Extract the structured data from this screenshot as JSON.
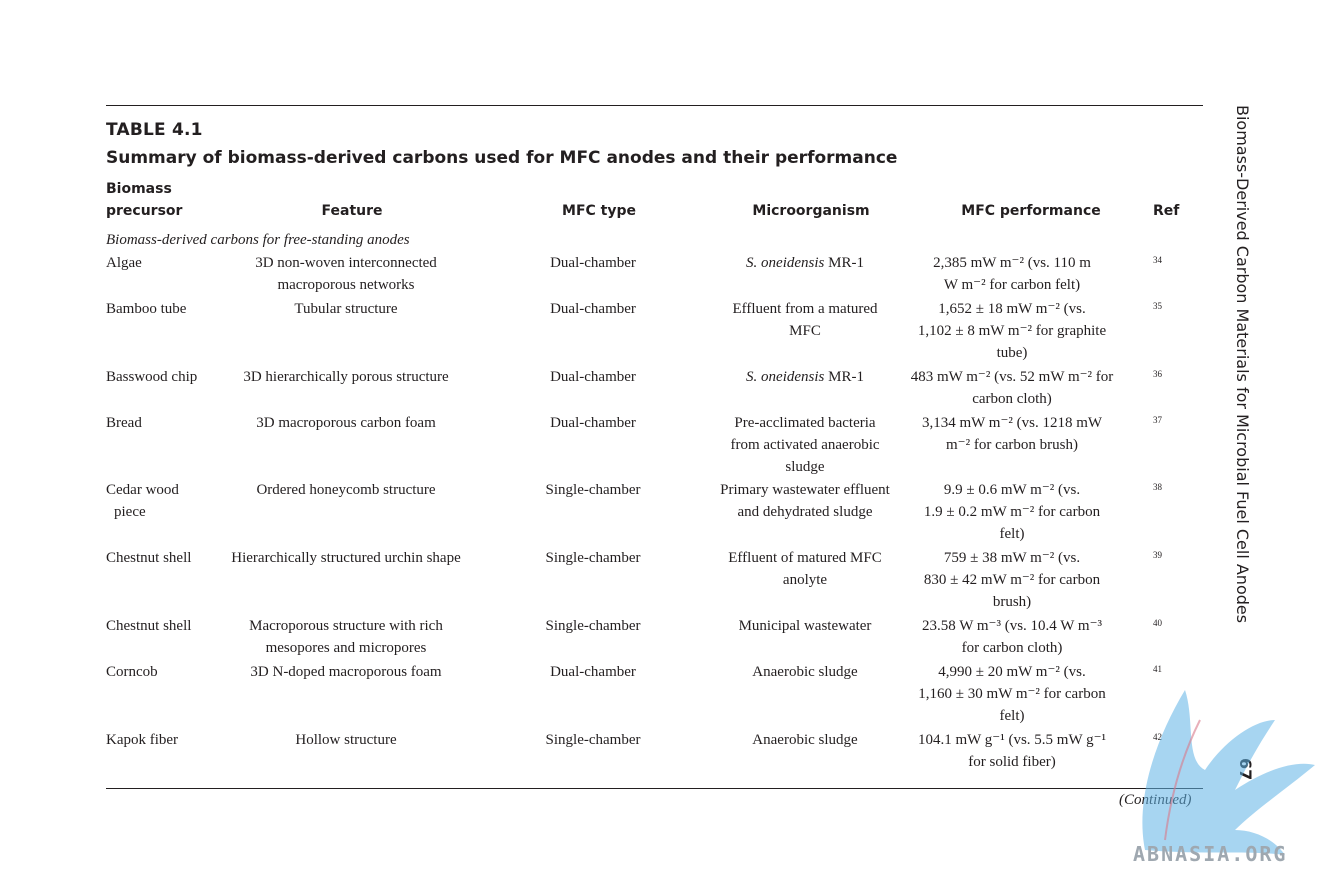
{
  "table": {
    "label": "TABLE 4.1",
    "caption": "Summary of biomass-derived carbons used for MFC anodes and their performance",
    "headers": {
      "biomass_line1": "Biomass",
      "biomass_line2": "precursor",
      "feature": "Feature",
      "mfc_type": "MFC type",
      "microorganism": "Microorganism",
      "mfc_performance": "MFC performance",
      "ref": "Ref"
    },
    "section_title": "Biomass-derived carbons for free-standing anodes",
    "rows": [
      {
        "precursor": [
          "Algae"
        ],
        "feature": [
          "3D non-woven interconnected",
          "macroporous networks"
        ],
        "type": "Dual-chamber",
        "micro": [
          [
            "S. oneidensis",
            " MR-1"
          ]
        ],
        "perf": [
          "2,385 mW m⁻² (vs. 110 m",
          "W m⁻² for carbon felt)"
        ],
        "ref": "34"
      },
      {
        "precursor": [
          "Bamboo tube"
        ],
        "feature": [
          "Tubular structure"
        ],
        "type": "Dual-chamber",
        "micro": [
          [
            "",
            "Effluent from a matured"
          ],
          [
            "",
            "MFC"
          ]
        ],
        "perf": [
          "1,652 ± 18 mW m⁻² (vs.",
          "1,102 ± 8 mW m⁻² for graphite",
          "tube)"
        ],
        "ref": "35"
      },
      {
        "precursor": [
          "Basswood chip"
        ],
        "feature": [
          "3D hierarchically porous structure"
        ],
        "type": "Dual-chamber",
        "micro": [
          [
            "S. oneidensis",
            " MR-1"
          ]
        ],
        "perf": [
          "483 mW m⁻² (vs. 52 mW m⁻² for",
          "carbon cloth)"
        ],
        "ref": "36"
      },
      {
        "precursor": [
          "Bread"
        ],
        "feature": [
          "3D macroporous carbon foam"
        ],
        "type": "Dual-chamber",
        "micro": [
          [
            "",
            "Pre-acclimated bacteria"
          ],
          [
            "",
            "from activated anaerobic"
          ],
          [
            "",
            "sludge"
          ]
        ],
        "perf": [
          "3,134 mW m⁻² (vs. 1218 mW",
          "m⁻² for carbon brush)"
        ],
        "ref": "37"
      },
      {
        "precursor": [
          "Cedar wood",
          "piece"
        ],
        "feature": [
          "Ordered honeycomb structure"
        ],
        "type": "Single-chamber",
        "micro": [
          [
            "",
            "Primary wastewater effluent"
          ],
          [
            "",
            "and dehydrated sludge"
          ]
        ],
        "perf": [
          "9.9 ± 0.6 mW m⁻² (vs.",
          "1.9 ± 0.2 mW m⁻² for carbon",
          "felt)"
        ],
        "ref": "38"
      },
      {
        "precursor": [
          "Chestnut shell"
        ],
        "feature": [
          "Hierarchically structured urchin shape"
        ],
        "type": "Single-chamber",
        "micro": [
          [
            "",
            "Effluent of matured MFC"
          ],
          [
            "",
            "anolyte"
          ]
        ],
        "perf": [
          "759 ± 38 mW m⁻² (vs.",
          "830 ± 42 mW m⁻² for carbon",
          "brush)"
        ],
        "ref": "39"
      },
      {
        "precursor": [
          "Chestnut shell"
        ],
        "feature": [
          "Macroporous structure with rich",
          "mesopores and micropores"
        ],
        "type": "Single-chamber",
        "micro": [
          [
            "",
            "Municipal wastewater"
          ]
        ],
        "perf": [
          "23.58 W m⁻³ (vs. 10.4 W m⁻³",
          "for carbon cloth)"
        ],
        "ref": "40"
      },
      {
        "precursor": [
          "Corncob"
        ],
        "feature": [
          "3D N-doped macroporous foam"
        ],
        "type": "Dual-chamber",
        "micro": [
          [
            "",
            "Anaerobic sludge"
          ]
        ],
        "perf": [
          "4,990 ± 20 mW m⁻² (vs.",
          "1,160 ± 30 mW m⁻² for carbon",
          "felt)"
        ],
        "ref": "41"
      },
      {
        "precursor": [
          "Kapok fiber"
        ],
        "feature": [
          "Hollow structure"
        ],
        "type": "Single-chamber",
        "micro": [
          [
            "",
            "Anaerobic sludge"
          ]
        ],
        "perf": [
          "104.1 mW g⁻¹ (vs. 5.5 mW g⁻¹",
          "for solid fiber)"
        ],
        "ref": "42"
      }
    ],
    "continued": "(Continued)"
  },
  "running_head": "Biomass-Derived Carbon Materials for Microbial Fuel Cell Anodes",
  "page_number": "67",
  "watermark": {
    "text": "ABNASIA.ORG",
    "color": "#5fb3e6"
  }
}
